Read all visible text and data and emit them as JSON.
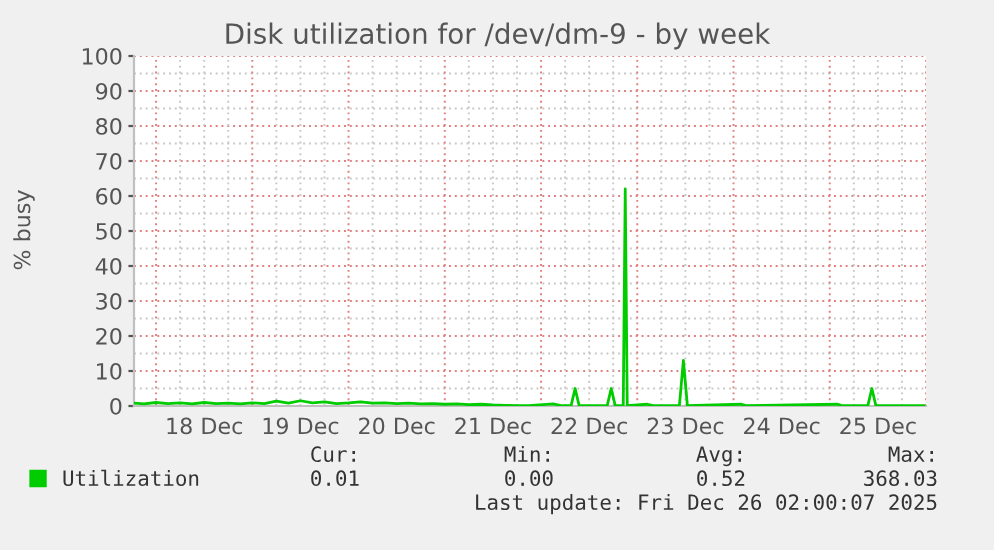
{
  "chart_data": {
    "type": "line",
    "title": "Disk utilization for /dev/dm-9 - by week",
    "ylabel": "% busy",
    "x": [
      "2025-12-17T18:30",
      "2025-12-17T21:00",
      "2025-12-18T00:00",
      "2025-12-18T03:00",
      "2025-12-18T06:00",
      "2025-12-18T09:00",
      "2025-12-18T12:00",
      "2025-12-18T15:00",
      "2025-12-18T18:00",
      "2025-12-18T21:00",
      "2025-12-19T00:00",
      "2025-12-19T03:00",
      "2025-12-19T06:00",
      "2025-12-19T09:00",
      "2025-12-19T12:00",
      "2025-12-19T15:00",
      "2025-12-19T18:00",
      "2025-12-19T21:00",
      "2025-12-20T00:00",
      "2025-12-20T03:00",
      "2025-12-20T06:00",
      "2025-12-20T09:00",
      "2025-12-20T12:00",
      "2025-12-20T15:00",
      "2025-12-20T18:00",
      "2025-12-20T21:00",
      "2025-12-21T00:00",
      "2025-12-21T03:00",
      "2025-12-21T06:00",
      "2025-12-21T09:00",
      "2025-12-21T12:00",
      "2025-12-21T15:00",
      "2025-12-21T18:00",
      "2025-12-21T21:00",
      "2025-12-22T03:00",
      "2025-12-22T05:00",
      "2025-12-22T07:30",
      "2025-12-22T08:30",
      "2025-12-22T09:30",
      "2025-12-22T16:30",
      "2025-12-22T17:30",
      "2025-12-22T18:30",
      "2025-12-22T20:30",
      "2025-12-22T21:00",
      "2025-12-22T21:30",
      "2025-12-23T02:30",
      "2025-12-23T04:00",
      "2025-12-23T10:30",
      "2025-12-23T11:30",
      "2025-12-23T12:30",
      "2025-12-24T02:00",
      "2025-12-24T03:00",
      "2025-12-25T02:00",
      "2025-12-25T03:00",
      "2025-12-25T09:30",
      "2025-12-25T10:30",
      "2025-12-25T11:30",
      "2025-12-25T23:30"
    ],
    "series": [
      {
        "name": "Utilization",
        "color": "#00cc00",
        "values": [
          0.8,
          0.6,
          1.0,
          0.7,
          0.9,
          0.6,
          1.0,
          0.7,
          0.8,
          0.6,
          0.9,
          0.7,
          1.4,
          0.8,
          1.5,
          0.9,
          1.2,
          0.7,
          0.9,
          1.2,
          0.8,
          0.9,
          0.7,
          0.8,
          0.6,
          0.7,
          0.5,
          0.6,
          0.4,
          0.5,
          0.3,
          0.2,
          0.1,
          0.1,
          0.6,
          0.1,
          0.1,
          5,
          0.1,
          0.1,
          5,
          0.1,
          0.1,
          62,
          0.1,
          0.5,
          0.1,
          0.1,
          13,
          0.1,
          0.5,
          0.1,
          0.5,
          0.1,
          0.1,
          5,
          0.1,
          0.1
        ]
      }
    ],
    "xlim": [
      "2025-12-17T18:30",
      "2025-12-26T00:00"
    ],
    "xticks": [
      {
        "value": "2025-12-18T12:00",
        "label": "18 Dec"
      },
      {
        "value": "2025-12-19T12:00",
        "label": "19 Dec"
      },
      {
        "value": "2025-12-20T12:00",
        "label": "20 Dec"
      },
      {
        "value": "2025-12-21T12:00",
        "label": "21 Dec"
      },
      {
        "value": "2025-12-22T12:00",
        "label": "22 Dec"
      },
      {
        "value": "2025-12-23T12:00",
        "label": "23 Dec"
      },
      {
        "value": "2025-12-24T12:00",
        "label": "24 Dec"
      },
      {
        "value": "2025-12-25T12:00",
        "label": "25 Dec"
      }
    ],
    "ylim": [
      0,
      100
    ],
    "yticks": [
      0,
      10,
      20,
      30,
      40,
      50,
      60,
      70,
      80,
      90,
      100
    ],
    "grid": true,
    "legend": "bottom left",
    "marker": "none",
    "line_style": "solid",
    "annotations": [
      "Cur:",
      "Min:",
      "Avg:",
      "Max:",
      "0.01",
      "0.00",
      "0.52",
      "368.03",
      "Last update: Fri Dec 26 02:00:07 2025"
    ]
  }
}
